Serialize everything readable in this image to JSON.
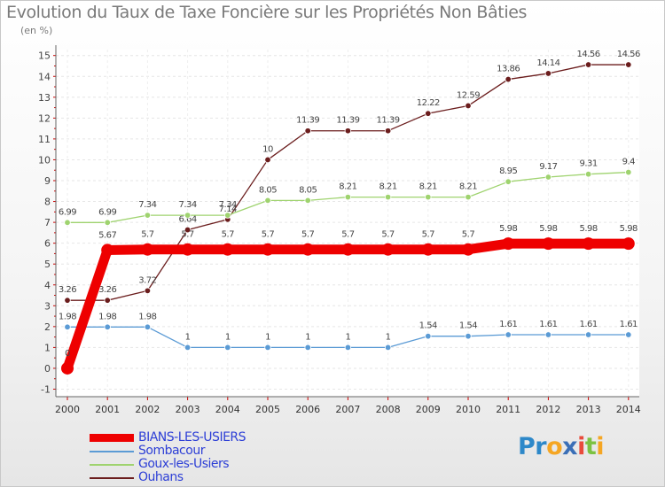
{
  "chart_data": {
    "type": "line",
    "title": "Evolution du Taux de Taxe Foncière sur les Propriétés Non Bâties",
    "ylabel": "(en %)",
    "xlabel": "",
    "ylim": [
      -1,
      15
    ],
    "yticks": [
      -1,
      0,
      1,
      2,
      3,
      4,
      5,
      6,
      7,
      8,
      9,
      10,
      11,
      12,
      13,
      14,
      15
    ],
    "categories": [
      "2000",
      "2001",
      "2002",
      "2003",
      "2004",
      "2005",
      "2006",
      "2007",
      "2008",
      "2009",
      "2010",
      "2011",
      "2012",
      "2013",
      "2014"
    ],
    "series": [
      {
        "name": "Ouhans",
        "color": "#6b1d1d",
        "values": [
          3.26,
          3.26,
          3.72,
          6.64,
          7.14,
          10,
          11.39,
          11.39,
          11.39,
          12.22,
          12.59,
          13.86,
          14.14,
          14.56,
          14.56
        ],
        "labels": [
          "3.26",
          "3.26",
          "3.72",
          "6.64",
          "7.14",
          "10",
          "11.39",
          "11.39",
          "11.39",
          "12.22",
          "12.59",
          "13.86",
          "14.14",
          "14.56",
          "14.56"
        ]
      },
      {
        "name": "Goux-les-Usiers",
        "color": "#9fd36f",
        "values": [
          6.99,
          6.99,
          7.34,
          7.34,
          7.34,
          8.05,
          8.05,
          8.21,
          8.21,
          8.21,
          8.21,
          8.95,
          9.17,
          9.31,
          9.4
        ],
        "labels": [
          "6.99",
          "6.99",
          "7.34",
          "7.34",
          "7.34",
          "8.05",
          "8.05",
          "8.21",
          "8.21",
          "8.21",
          "8.21",
          "8.95",
          "9.17",
          "9.31",
          "9.4"
        ]
      },
      {
        "name": "Sombacour",
        "color": "#5b9bd5",
        "values": [
          1.98,
          1.98,
          1.98,
          1,
          1,
          1,
          1,
          1,
          1,
          1.54,
          1.54,
          1.61,
          1.61,
          1.61,
          1.61
        ],
        "labels": [
          "1.98",
          "1.98",
          "1.98",
          "1",
          "1",
          "1",
          "1",
          "1",
          "1",
          "1.54",
          "1.54",
          "1.61",
          "1.61",
          "1.61",
          "1.61"
        ]
      },
      {
        "name": "BIANS-LES-USIERS",
        "color": "#ee0000",
        "values": [
          0,
          5.67,
          5.7,
          5.7,
          5.7,
          5.7,
          5.7,
          5.7,
          5.7,
          5.7,
          5.7,
          5.98,
          5.98,
          5.98,
          5.98
        ],
        "labels": [
          "0",
          "5.67",
          "5.7",
          "5.7",
          "5.7",
          "5.7",
          "5.7",
          "5.7",
          "5.7",
          "5.7",
          "5.7",
          "5.98",
          "5.98",
          "5.98",
          "5.98"
        ]
      }
    ],
    "legend": [
      {
        "name": "BIANS-LES-USIERS",
        "color": "#ee0000",
        "text_color": "#2d3fd6",
        "thick": true
      },
      {
        "name": "Sombacour",
        "color": "#5b9bd5",
        "text_color": "#2d3fd6",
        "thick": false
      },
      {
        "name": "Goux-les-Usiers",
        "color": "#9fd36f",
        "text_color": "#2d3fd6",
        "thick": false
      },
      {
        "name": "Ouhans",
        "color": "#6b1d1d",
        "text_color": "#2d3fd6",
        "thick": false
      }
    ]
  },
  "logo": {
    "part1": "Pr",
    "part2": "o",
    "part3": "x",
    "part4": "i",
    "part5": "t",
    "part6": "i"
  }
}
